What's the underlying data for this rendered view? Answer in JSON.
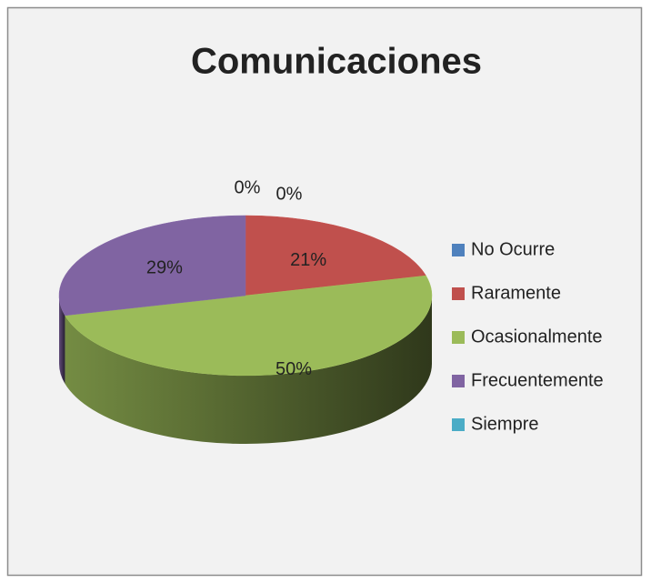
{
  "chart_data": {
    "type": "pie3d",
    "title": "Comunicaciones",
    "categories": [
      "No Ocurre",
      "Raramente",
      "Ocasionalmente",
      "Frecuentemente",
      "Siempre"
    ],
    "values": [
      0,
      21,
      50,
      29,
      0
    ],
    "value_labels": [
      "0%",
      "21%",
      "50%",
      "29%",
      "0%"
    ],
    "colors": [
      "#4f81bd",
      "#c0504d",
      "#9bbb59",
      "#8064a2",
      "#4bacc6"
    ],
    "legend": "right"
  }
}
